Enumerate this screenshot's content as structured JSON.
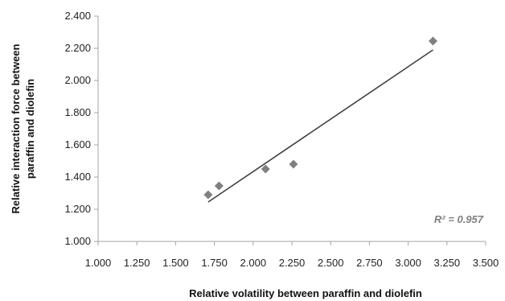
{
  "chart_data": {
    "type": "scatter",
    "xlabel": "Relative volatility between paraffin and diolefin",
    "ylabel_lines": [
      "Relative interaction force between",
      "paraffin and diolefin"
    ],
    "xlim": [
      1.0,
      3.5
    ],
    "ylim": [
      1.0,
      2.4
    ],
    "x_ticks": [
      1.0,
      1.25,
      1.5,
      1.75,
      2.0,
      2.25,
      2.5,
      2.75,
      3.0,
      3.25,
      3.5
    ],
    "x_tick_labels": [
      "1.000",
      "1.250",
      "1.500",
      "1.750",
      "2.000",
      "2.250",
      "2.500",
      "2.750",
      "3.000",
      "3.250",
      "3.500"
    ],
    "y_ticks": [
      1.0,
      1.2,
      1.4,
      1.6,
      1.8,
      2.0,
      2.2,
      2.4
    ],
    "y_tick_labels": [
      "1.000",
      "1.200",
      "1.400",
      "1.600",
      "1.800",
      "2.000",
      "2.200",
      "2.400"
    ],
    "grid": false,
    "marker": "diamond",
    "marker_color": "#808080",
    "line_color": "#404040",
    "axis_color": "#a6a6a6",
    "points": [
      {
        "x": 1.71,
        "y": 1.29
      },
      {
        "x": 1.78,
        "y": 1.345
      },
      {
        "x": 2.08,
        "y": 1.45
      },
      {
        "x": 2.26,
        "y": 1.48
      },
      {
        "x": 3.16,
        "y": 2.245
      }
    ],
    "trendline": {
      "x": [
        1.71,
        3.16
      ],
      "y": [
        1.245,
        2.19
      ]
    },
    "annotation": "R² = 0.957"
  }
}
